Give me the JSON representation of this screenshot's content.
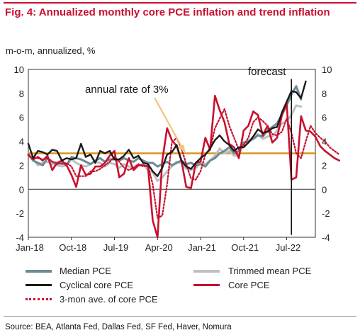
{
  "title": "Fig. 4: Annualized monthly core PCE inflation and trend inflation",
  "source": "Source: BEA, Atlanta Fed, Dallas Fed, SF Fed, Haver, Nomura",
  "colors": {
    "title": "#c8102e",
    "median": "#6d8a94",
    "trimmed": "#c0c0c0",
    "cyclical": "#1a1a1a",
    "core": "#c8102e",
    "threemon": "#c8102e",
    "ref": "#d9961a",
    "arrow": "#f2c47a"
  },
  "chart_data": {
    "type": "line",
    "ylabel": "m-o-m, annualized, %",
    "ylim": [
      -4,
      10
    ],
    "yticks": [
      -4,
      -2,
      0,
      2,
      4,
      6,
      8,
      10
    ],
    "xticks": [
      "Jan-18",
      "Oct-18",
      "Jul-19",
      "Apr-20",
      "Jan-21",
      "Oct-21",
      "Jul-22"
    ],
    "x_start": "2018-01",
    "annotations": [
      "annual rate of 3%",
      "forecast"
    ],
    "reference_line": {
      "y": 3
    },
    "forecast_start": "2022-07",
    "series": [
      {
        "name": "Median PCE",
        "key": "median",
        "values": [
          2.9,
          2.4,
          2.2,
          2.0,
          2.6,
          2.3,
          2.1,
          2.2,
          2.0,
          2.7,
          2.6,
          2.5,
          2.3,
          2.1,
          2.4,
          2.6,
          2.3,
          2.5,
          2.5,
          2.4,
          2.6,
          2.4,
          2.3,
          2.6,
          2.4,
          2.2,
          2.2,
          1.9,
          2.1,
          2.3,
          2.0,
          2.2,
          2.4,
          2.1,
          2.2,
          2.0,
          2.1,
          1.9,
          2.4,
          2.6,
          3.0,
          3.2,
          3.5,
          3.0,
          3.2,
          3.9,
          4.0,
          4.2,
          4.5,
          4.4,
          4.9,
          5.2,
          5.5,
          6.2,
          7.0,
          7.9,
          8.6,
          7.5
        ]
      },
      {
        "name": "Trimmed mean PCE",
        "key": "trimmed",
        "values": [
          2.8,
          2.5,
          2.0,
          2.2,
          2.3,
          2.1,
          2.0,
          1.9,
          2.0,
          2.5,
          2.2,
          2.0,
          1.9,
          2.1,
          2.3,
          2.2,
          1.9,
          2.2,
          2.1,
          1.8,
          2.1,
          1.9,
          1.8,
          2.0,
          2.1,
          1.6,
          1.4,
          0.7,
          1.0,
          1.5,
          1.9,
          2.3,
          2.2,
          1.7,
          1.6,
          1.8,
          2.2,
          2.1,
          2.4,
          2.8,
          3.4,
          3.0,
          3.2,
          2.8,
          2.9,
          3.8,
          3.9,
          4.3,
          4.6,
          4.2,
          4.4,
          4.4,
          4.9,
          5.5,
          5.7,
          6.2,
          7.0,
          6.9
        ]
      },
      {
        "name": "Cyclical core PCE",
        "key": "cyclical",
        "values": [
          3.8,
          2.6,
          3.2,
          3.1,
          2.9,
          3.3,
          3.2,
          2.4,
          2.6,
          2.5,
          2.6,
          3.8,
          2.7,
          2.9,
          2.2,
          3.2,
          3.0,
          3.2,
          2.5,
          2.5,
          2.8,
          3.3,
          2.6,
          2.8,
          2.2,
          2.1,
          1.5,
          1.1,
          1.8,
          2.9,
          3.1,
          3.7,
          2.4,
          1.9,
          1.7,
          2.2,
          2.6,
          2.9,
          3.4,
          4.1,
          4.5,
          4.0,
          3.7,
          3.2,
          3.5,
          3.5,
          3.9,
          4.4,
          5.0,
          4.7,
          4.8,
          5.1,
          5.2,
          6.4,
          7.3,
          8.2,
          8.1,
          7.6,
          9.0
        ]
      },
      {
        "name": "Core PCE",
        "key": "core",
        "values": [
          2.9,
          2.5,
          2.7,
          2.4,
          2.8,
          1.6,
          2.2,
          2.4,
          2.0,
          1.2,
          0.2,
          2.0,
          1.2,
          1.3,
          1.9,
          1.9,
          2.2,
          2.8,
          3.2,
          1.0,
          1.3,
          2.6,
          1.6,
          2.0,
          2.0,
          1.9,
          -2.6,
          -6.4,
          2.4,
          5.1,
          4.1,
          3.6,
          2.4,
          0.2,
          0.1,
          2.2,
          2.3,
          4.3,
          3.3,
          7.8,
          6.6,
          5.6,
          3.8,
          3.5,
          2.6,
          4.9,
          5.3,
          6.5,
          6.2,
          4.5,
          5.3,
          3.9,
          4.3,
          6.2,
          7.2,
          0.8,
          1.0,
          6.1,
          4.9,
          4.8,
          4.4,
          3.6,
          3.2,
          2.9,
          2.6,
          2.4
        ]
      },
      {
        "name": "3-mon ave. of core PCE",
        "key": "threemon",
        "values": [
          2.8,
          2.6,
          2.6,
          2.5,
          2.6,
          2.3,
          2.2,
          2.1,
          2.2,
          1.9,
          1.1,
          1.1,
          1.1,
          1.5,
          1.5,
          1.7,
          2.0,
          2.3,
          2.7,
          2.3,
          1.8,
          1.6,
          1.8,
          2.1,
          1.9,
          2.0,
          0.4,
          -2.4,
          -2.2,
          0.4,
          3.9,
          4.3,
          3.4,
          2.1,
          0.9,
          0.8,
          1.5,
          2.9,
          3.3,
          5.1,
          5.9,
          6.7,
          5.3,
          4.3,
          3.3,
          3.7,
          4.3,
          5.6,
          6.0,
          5.7,
          5.3,
          4.6,
          4.5,
          4.8,
          5.9,
          4.7,
          3.0,
          2.6,
          4.0,
          5.3,
          4.7,
          4.3,
          4.0,
          3.5,
          3.2,
          2.9
        ]
      }
    ]
  }
}
